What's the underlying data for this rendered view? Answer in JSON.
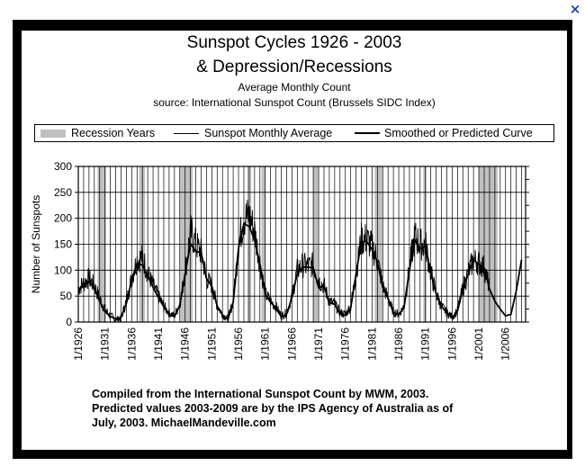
{
  "window": {
    "close_glyph": "×"
  },
  "chart_data": {
    "type": "line",
    "title": "Sunspot Cycles 1926 - 2003",
    "title_line2": "& Depression/Recessions",
    "subtitle": "Average Monthly Count",
    "source": "source:  International Sunspot Count (Brussels SIDC Index)",
    "legend": [
      {
        "label": "Recession Years",
        "kind": "band"
      },
      {
        "label": "Sunspot Monthly Average",
        "kind": "thin-line"
      },
      {
        "label": "Smoothed or Predicted Curve",
        "kind": "thick-line"
      }
    ],
    "ylabel": "Number of Sunspots",
    "xlabel": "",
    "ylim": [
      0,
      300
    ],
    "xlim": [
      1926,
      2009.75
    ],
    "yticks": [
      "0",
      "50",
      "100",
      "150",
      "200",
      "250",
      "300"
    ],
    "xticks": [
      "1/1926",
      "1/1931",
      "1/1936",
      "1/1941",
      "1/1946",
      "1/1951",
      "1/1956",
      "1/1961",
      "1/1966",
      "1/1971",
      "1/1976",
      "1/1981",
      "1/1986",
      "1/1991",
      "1/1996",
      "1/2001",
      "1/2006"
    ],
    "recessions": [
      [
        1929.6,
        1931.2
      ],
      [
        1937.4,
        1938.5
      ],
      [
        1945.1,
        1947.4
      ],
      [
        1957.6,
        1958.4
      ],
      [
        1960.3,
        1961.1
      ],
      [
        1969.9,
        1970.9
      ],
      [
        1981.5,
        1982.9
      ],
      [
        1990.6,
        1991.2
      ],
      [
        2000.9,
        2004.5
      ]
    ],
    "series": [
      {
        "name": "Sunspot Monthly Average",
        "x": [
          1926,
          1927,
          1928,
          1929,
          1930,
          1931,
          1932,
          1933,
          1934,
          1935,
          1936,
          1937,
          1938,
          1939,
          1940,
          1941,
          1942,
          1943,
          1944,
          1945,
          1946,
          1947,
          1948,
          1949,
          1950,
          1951,
          1952,
          1953,
          1954,
          1955,
          1956,
          1957,
          1958,
          1959,
          1960,
          1961,
          1962,
          1963,
          1964,
          1965,
          1966,
          1967,
          1968,
          1969,
          1970,
          1971,
          1972,
          1973,
          1974,
          1975,
          1976,
          1977,
          1978,
          1979,
          1980,
          1981,
          1982,
          1983,
          1984,
          1985,
          1986,
          1987,
          1988,
          1989,
          1990,
          1991,
          1992,
          1993,
          1994,
          1995,
          1996,
          1997,
          1998,
          1999,
          2000,
          2001,
          2002,
          2003
        ],
        "values": [
          65,
          75,
          85,
          70,
          45,
          25,
          12,
          5,
          7,
          40,
          85,
          120,
          125,
          95,
          70,
          50,
          30,
          18,
          12,
          35,
          95,
          175,
          150,
          135,
          85,
          70,
          32,
          15,
          5,
          40,
          150,
          200,
          205,
          175,
          115,
          55,
          40,
          30,
          12,
          18,
          50,
          100,
          110,
          108,
          110,
          80,
          70,
          40,
          35,
          18,
          15,
          30,
          95,
          160,
          160,
          145,
          120,
          70,
          45,
          20,
          15,
          30,
          105,
          165,
          150,
          150,
          95,
          55,
          30,
          18,
          10,
          22,
          65,
          95,
          120,
          115,
          105,
          65
        ]
      },
      {
        "name": "Smoothed or Predicted Curve",
        "x": [
          1926,
          1927,
          1928,
          1929,
          1930,
          1931,
          1932,
          1933,
          1934,
          1935,
          1936,
          1937,
          1938,
          1939,
          1940,
          1941,
          1942,
          1943,
          1944,
          1945,
          1946,
          1947,
          1948,
          1949,
          1950,
          1951,
          1952,
          1953,
          1954,
          1955,
          1956,
          1957,
          1958,
          1959,
          1960,
          1961,
          1962,
          1963,
          1964,
          1965,
          1966,
          1967,
          1968,
          1969,
          1970,
          1971,
          1972,
          1973,
          1974,
          1975,
          1976,
          1977,
          1978,
          1979,
          1980,
          1981,
          1982,
          1983,
          1984,
          1985,
          1986,
          1987,
          1988,
          1989,
          1990,
          1991,
          1992,
          1993,
          1994,
          1995,
          1996,
          1997,
          1998,
          1999,
          2000,
          2001,
          2002,
          2003,
          2004,
          2005,
          2006,
          2007,
          2008,
          2009
        ],
        "values": [
          63,
          70,
          78,
          65,
          40,
          20,
          11,
          6,
          9,
          36,
          80,
          114,
          110,
          89,
          67,
          47,
          30,
          16,
          10,
          33,
          93,
          151,
          136,
          134,
          84,
          69,
          31,
          14,
          5,
          38,
          142,
          190,
          184,
          159,
          112,
          54,
          38,
          28,
          10,
          15,
          47,
          94,
          106,
          106,
          104,
          67,
          69,
          38,
          34,
          16,
          13,
          27,
          93,
          155,
          155,
          140,
          116,
          67,
          46,
          18,
          14,
          29,
          100,
          158,
          142,
          146,
          94,
          55,
          30,
          18,
          9,
          21,
          64,
          93,
          120,
          111,
          104,
          64,
          40,
          25,
          12,
          15,
          60,
          120
        ]
      }
    ]
  },
  "footer": {
    "line1": "Compiled from the International Sunspot Count by MWM, 2003.",
    "line2": "Predicted values 2003-2009 are by the IPS Agency of Australia as of",
    "line3": "July, 2003.  MichaelMandeville.com"
  }
}
